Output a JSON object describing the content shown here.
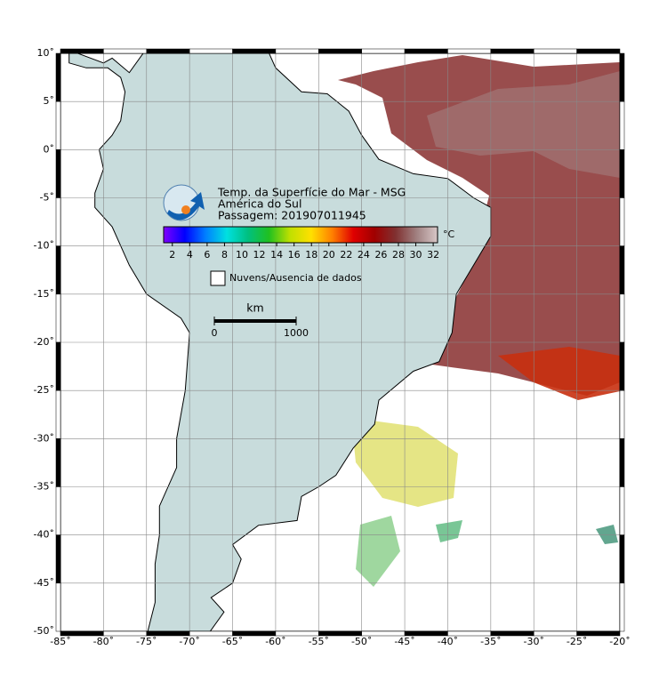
{
  "map": {
    "title": "Temp. da Superfície do Mar - MSG",
    "region": "América do Sul",
    "pass": "Passagem: 201907011945",
    "xlim": [
      -85,
      -20
    ],
    "ylim": [
      -50,
      10
    ],
    "xticks": [
      {
        "value": -85,
        "label": "-85˚"
      },
      {
        "value": -80,
        "label": "-80˚"
      },
      {
        "value": -75,
        "label": "-75˚"
      },
      {
        "value": -70,
        "label": "-70˚"
      },
      {
        "value": -65,
        "label": "-65˚"
      },
      {
        "value": -60,
        "label": "-60˚"
      },
      {
        "value": -55,
        "label": "-55˚"
      },
      {
        "value": -50,
        "label": "-50˚"
      },
      {
        "value": -45,
        "label": "-45˚"
      },
      {
        "value": -40,
        "label": "-40˚"
      },
      {
        "value": -35,
        "label": "-35˚"
      },
      {
        "value": -30,
        "label": "-30˚"
      },
      {
        "value": -25,
        "label": "-25˚"
      },
      {
        "value": -20,
        "label": "-20˚"
      }
    ],
    "yticks": [
      {
        "value": 10,
        "label": "10˚"
      },
      {
        "value": 5,
        "label": "5˚"
      },
      {
        "value": 0,
        "label": "0˚"
      },
      {
        "value": -5,
        "label": "-5˚"
      },
      {
        "value": -10,
        "label": "-10˚"
      },
      {
        "value": -15,
        "label": "-15˚"
      },
      {
        "value": -20,
        "label": "-20˚"
      },
      {
        "value": -25,
        "label": "-25˚"
      },
      {
        "value": -30,
        "label": "-30˚"
      },
      {
        "value": -35,
        "label": "-35˚"
      },
      {
        "value": -40,
        "label": "-40˚"
      },
      {
        "value": -45,
        "label": "-45˚"
      },
      {
        "value": -50,
        "label": "-50˚"
      }
    ],
    "grid": true,
    "colorbar": {
      "unit": "°C",
      "range": [
        1,
        32.5
      ],
      "ticks": [
        2,
        4,
        6,
        8,
        10,
        12,
        14,
        16,
        18,
        20,
        22,
        24,
        26,
        28,
        30,
        32
      ],
      "colors": [
        "#8000ff",
        "#0000ff",
        "#0080ff",
        "#00e0e0",
        "#00c080",
        "#20c020",
        "#c0e000",
        "#ffe000",
        "#ff8000",
        "#e00000",
        "#a00000",
        "#803030",
        "#a08080",
        "#d8c8c8"
      ]
    },
    "legend": "Nuvens/Ausencia de dados",
    "scale_bar": {
      "unit": "km",
      "ticks": [
        0,
        1000
      ]
    }
  }
}
